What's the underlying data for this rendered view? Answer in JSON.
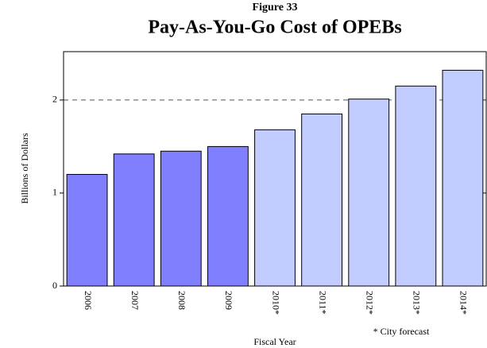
{
  "chart_data": {
    "type": "bar",
    "supertitle": "Figure 33",
    "title": "Pay-As-You-Go Cost of OPEBs",
    "ylabel": "Billions of Dollars",
    "xlabel": "Fiscal Year",
    "note": "* City forecast",
    "categories": [
      "2006",
      "2007",
      "2008",
      "2009",
      "2010*",
      "2011*",
      "2012*",
      "2013*",
      "2014*"
    ],
    "values": [
      1.2,
      1.42,
      1.45,
      1.5,
      1.68,
      1.85,
      2.01,
      2.15,
      2.32
    ],
    "colors": [
      "#8080ff",
      "#8080ff",
      "#8080ff",
      "#8080ff",
      "#c3ccff",
      "#c3ccff",
      "#c3ccff",
      "#c3ccff",
      "#c3ccff"
    ],
    "ylim": [
      0,
      2.52
    ],
    "yticks": [
      0,
      1,
      2
    ],
    "reference_line": 2
  }
}
